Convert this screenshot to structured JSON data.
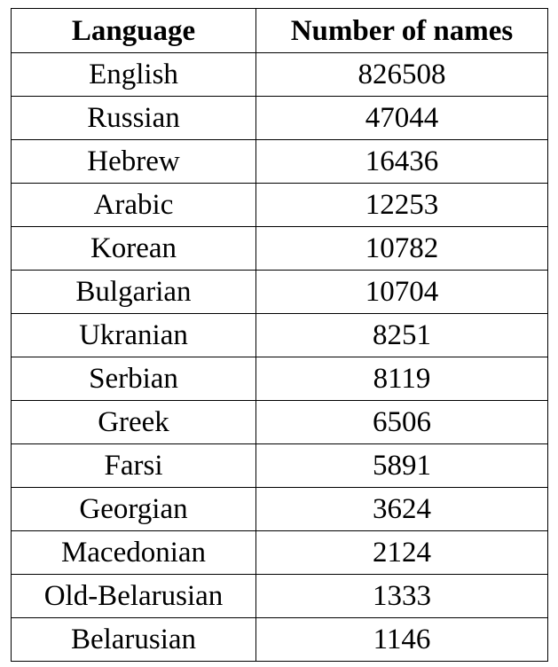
{
  "table": {
    "headers": [
      "Language",
      "Number of names"
    ],
    "rows": [
      [
        "English",
        "826508"
      ],
      [
        "Russian",
        "47044"
      ],
      [
        "Hebrew",
        "16436"
      ],
      [
        "Arabic",
        "12253"
      ],
      [
        "Korean",
        "10782"
      ],
      [
        "Bulgarian",
        "10704"
      ],
      [
        "Ukranian",
        "8251"
      ],
      [
        "Serbian",
        "8119"
      ],
      [
        "Greek",
        "6506"
      ],
      [
        "Farsi",
        "5891"
      ],
      [
        "Georgian",
        "3624"
      ],
      [
        "Macedonian",
        "2124"
      ],
      [
        "Old-Belarusian",
        "1333"
      ],
      [
        "Belarusian",
        "1146"
      ]
    ]
  }
}
